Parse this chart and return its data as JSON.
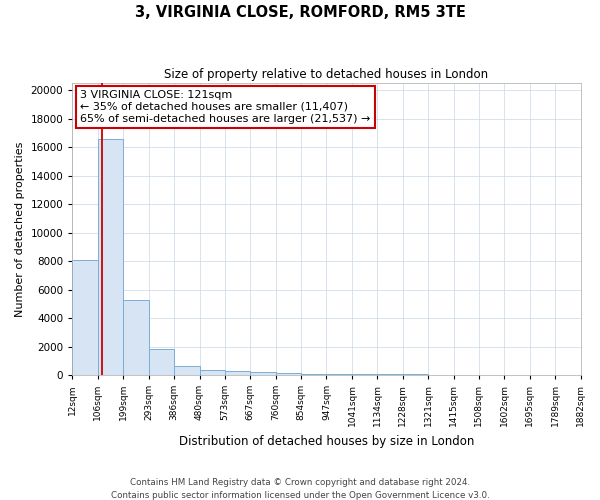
{
  "title": "3, VIRGINIA CLOSE, ROMFORD, RM5 3TE",
  "subtitle": "Size of property relative to detached houses in London",
  "xlabel": "Distribution of detached houses by size in London",
  "ylabel": "Number of detached properties",
  "bar_fill_color": "#d6e4f3",
  "bar_edge_color": "#7aaed6",
  "grid_color": "#c8d8e8",
  "red_line_color": "#cc0000",
  "property_size": 121,
  "annotation_line1": "3 VIRGINIA CLOSE: 121sqm",
  "annotation_line2": "← 35% of detached houses are smaller (11,407)",
  "annotation_line3": "65% of semi-detached houses are larger (21,537) →",
  "footer_line1": "Contains HM Land Registry data © Crown copyright and database right 2024.",
  "footer_line2": "Contains public sector information licensed under the Open Government Licence v3.0.",
  "bin_labels": [
    "12sqm",
    "106sqm",
    "199sqm",
    "293sqm",
    "386sqm",
    "480sqm",
    "573sqm",
    "667sqm",
    "760sqm",
    "854sqm",
    "947sqm",
    "1041sqm",
    "1134sqm",
    "1228sqm",
    "1321sqm",
    "1415sqm",
    "1508sqm",
    "1602sqm",
    "1695sqm",
    "1789sqm",
    "1882sqm"
  ],
  "bin_edges": [
    12,
    106,
    199,
    293,
    386,
    480,
    573,
    667,
    760,
    854,
    947,
    1041,
    1134,
    1228,
    1321,
    1415,
    1508,
    1602,
    1695,
    1789,
    1882
  ],
  "bar_heights": [
    8100,
    16600,
    5300,
    1800,
    650,
    380,
    250,
    190,
    150,
    100,
    75,
    60,
    48,
    38,
    30,
    24,
    18,
    13,
    10,
    7
  ],
  "ylim": [
    0,
    20500
  ],
  "yticks": [
    0,
    2000,
    4000,
    6000,
    8000,
    10000,
    12000,
    14000,
    16000,
    18000,
    20000
  ]
}
